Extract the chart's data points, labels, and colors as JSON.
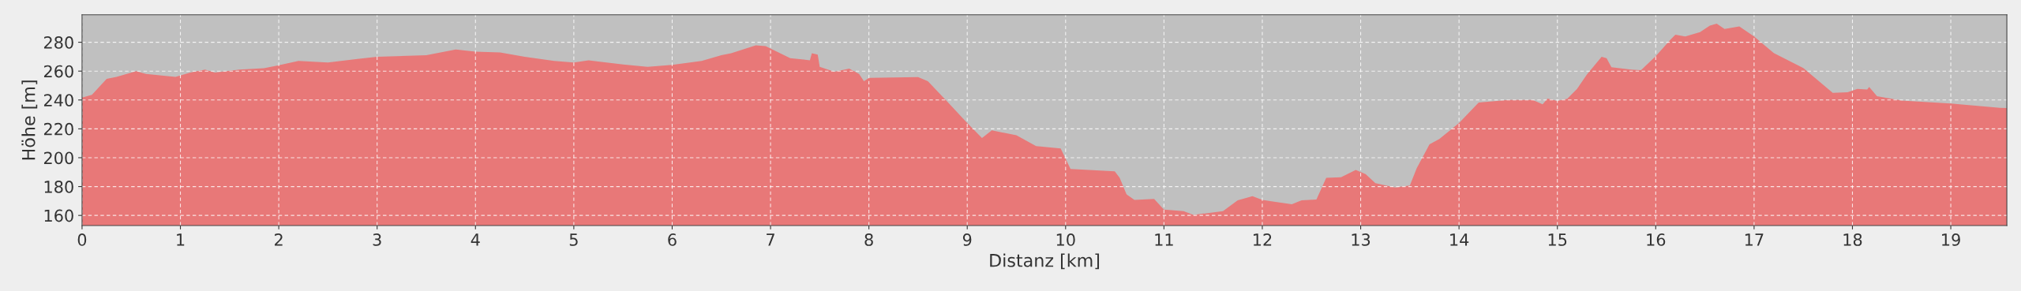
{
  "chart_data": {
    "type": "area",
    "xlabel": "Distanz [km]",
    "ylabel": "Höhe [m]",
    "x": [
      0,
      0.1,
      0.25,
      0.35,
      0.55,
      0.65,
      0.95,
      1.1,
      1.25,
      1.35,
      1.6,
      1.85,
      2.0,
      2.2,
      2.5,
      2.8,
      3.0,
      3.5,
      3.8,
      4.0,
      4.25,
      4.5,
      4.8,
      5.0,
      5.15,
      5.5,
      5.75,
      6.0,
      6.3,
      6.5,
      6.6,
      6.85,
      6.95,
      7.2,
      7.4,
      7.42,
      7.48,
      7.5,
      7.65,
      7.8,
      7.9,
      7.95,
      8.0,
      8.5,
      8.6,
      8.8,
      9.0,
      9.15,
      9.25,
      9.5,
      9.7,
      9.95,
      10.05,
      10.5,
      10.55,
      10.62,
      10.7,
      10.9,
      11.0,
      11.2,
      11.3,
      11.6,
      11.75,
      11.9,
      12.0,
      12.3,
      12.4,
      12.55,
      12.65,
      12.8,
      12.95,
      13.05,
      13.15,
      13.35,
      13.5,
      13.57,
      13.7,
      13.8,
      14.0,
      14.2,
      14.5,
      14.75,
      14.85,
      14.9,
      15.0,
      15.1,
      15.2,
      15.3,
      15.45,
      15.5,
      15.55,
      15.75,
      15.85,
      16.0,
      16.15,
      16.2,
      16.3,
      16.45,
      16.55,
      16.62,
      16.7,
      16.85,
      17.0,
      17.2,
      17.5,
      17.8,
      17.95,
      18.05,
      18.15,
      18.17,
      18.25,
      18.5,
      19.0,
      19.5,
      19.57
    ],
    "series": [
      {
        "color": "#e87878",
        "values": [
          241.6,
          243.6,
          254.6,
          256,
          260,
          258,
          256,
          259,
          261,
          259,
          261,
          262,
          264,
          267,
          266,
          268.5,
          270,
          271,
          275,
          273.5,
          273,
          270,
          267,
          266,
          267.5,
          264.6,
          263,
          264.4,
          267,
          271,
          272.4,
          277.8,
          277.3,
          269,
          267.5,
          272.4,
          271.5,
          263,
          259.5,
          261.7,
          258,
          253,
          255.3,
          255.8,
          253,
          238.7,
          224,
          213.7,
          219,
          215.5,
          208,
          206.4,
          192.2,
          190.5,
          186,
          174.6,
          170.7,
          171.4,
          164,
          163,
          160.4,
          163,
          170.5,
          173.4,
          170.7,
          167.8,
          170.5,
          171,
          186,
          186.5,
          191.5,
          188.6,
          182.4,
          179.3,
          180.7,
          192.7,
          209.3,
          213,
          224,
          238.2,
          240,
          240,
          237,
          241,
          239.4,
          240.8,
          247.7,
          257.6,
          269.9,
          269,
          262.7,
          261,
          260.6,
          270.3,
          281.8,
          285.3,
          284,
          287,
          291.5,
          292.9,
          289.2,
          291,
          284,
          272.6,
          262.2,
          245,
          245.4,
          247.7,
          247.2,
          249,
          242.6,
          239.6,
          237.6,
          234.6,
          234.4
        ]
      }
    ],
    "xlim": [
      0,
      19.57
    ],
    "ylim": [
      153,
      299
    ],
    "xticks": [
      0,
      1,
      2,
      3,
      4,
      5,
      6,
      7,
      8,
      9,
      10,
      11,
      12,
      13,
      14,
      15,
      16,
      17,
      18,
      19
    ],
    "yticks": [
      160,
      180,
      200,
      220,
      240,
      260,
      280
    ],
    "grid": true
  }
}
